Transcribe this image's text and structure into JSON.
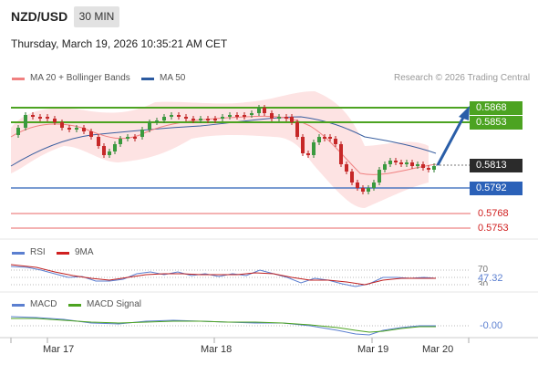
{
  "header": {
    "pair": "NZD/USD",
    "timeframe": "30 MIN",
    "datetime": "Thursday, March 19, 2026 10:35:21 AM CET"
  },
  "legend": {
    "ma20": "MA 20 + Bollinger Bands",
    "ma50": "MA 50",
    "credit": "Research © 2026 Trading Central",
    "rsi": "RSI",
    "rsi_ma": "9MA",
    "macd": "MACD",
    "macd_signal": "MACD Signal"
  },
  "levels": {
    "resistance_2": "0.5868",
    "resistance_1": "0.5853",
    "last_price": "0.5813",
    "pivot": "0.5792",
    "support_1": "0.5768",
    "support_2": "0.5753"
  },
  "rsi_panel": {
    "upper": "70",
    "value": "47.32",
    "lower": "30"
  },
  "macd_panel": {
    "value": "-0.00"
  },
  "x_axis": [
    "Mar 17",
    "Mar 18",
    "Mar 19",
    "Mar 20"
  ],
  "colors": {
    "green": "#4ca321",
    "blue": "#2b61b8",
    "red": "#e03030",
    "ma20": "#f08080",
    "ma50": "#3a5fa0",
    "band": "#fde0e0",
    "arrow": "#2a5ea8"
  }
}
